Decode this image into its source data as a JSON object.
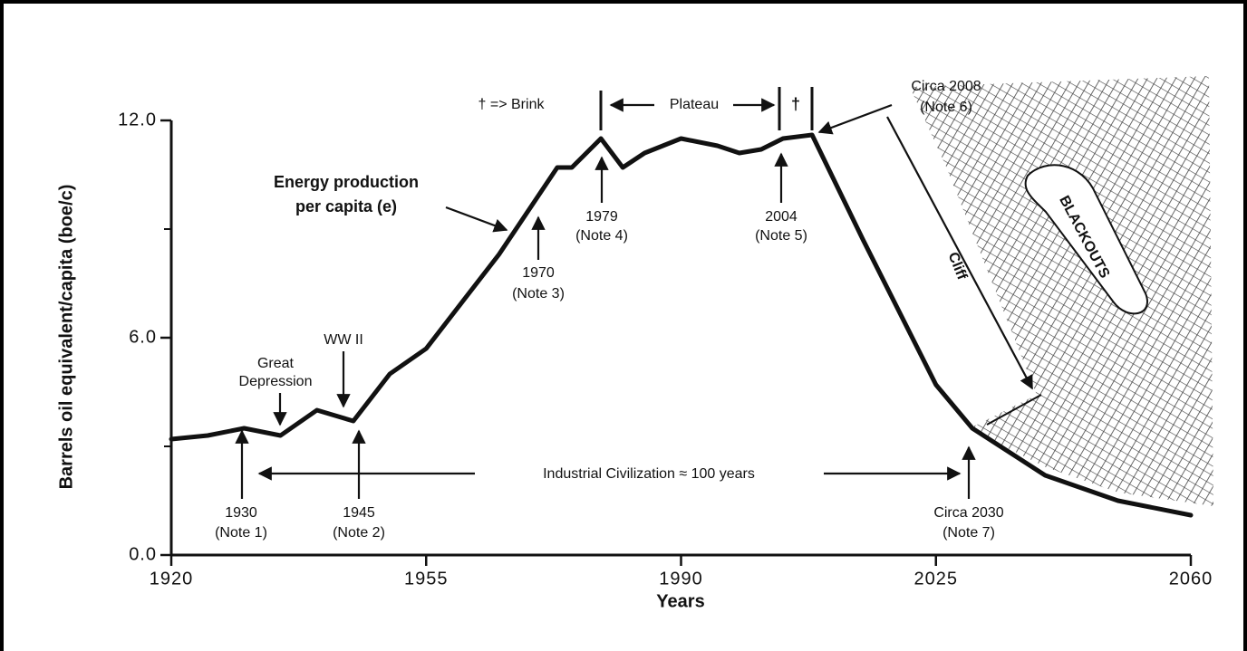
{
  "chart_data": {
    "type": "line",
    "x_label": "Years",
    "y_label": "Barrels oil equivalent/capita (boe/c)",
    "x": [
      1920,
      1925,
      1930,
      1935,
      1940,
      1945,
      1950,
      1955,
      1960,
      1965,
      1970,
      1973,
      1975,
      1979,
      1982,
      1985,
      1990,
      1995,
      1998,
      2001,
      2004,
      2008,
      2015,
      2020,
      2025,
      2030,
      2040,
      2050,
      2060
    ],
    "values": [
      3.2,
      3.3,
      3.5,
      3.3,
      4.0,
      3.7,
      5.0,
      5.7,
      7.0,
      8.3,
      9.8,
      10.7,
      10.7,
      11.5,
      10.7,
      11.1,
      11.5,
      11.3,
      11.1,
      11.2,
      11.5,
      11.6,
      8.7,
      6.7,
      4.7,
      3.5,
      2.2,
      1.5,
      1.1
    ],
    "color": "#111111",
    "xlim": [
      1920,
      2060
    ],
    "xticks": [
      1920,
      1955,
      1990,
      2025,
      2060
    ],
    "ylim": [
      0,
      12
    ],
    "yticks": [
      {
        "value": 0,
        "label": "0.0"
      },
      {
        "value": 6,
        "label": "6.0"
      },
      {
        "value": 12,
        "label": "12.0"
      }
    ],
    "y_minor_ticks": [
      3,
      9
    ],
    "annotations": [
      "† => Brink",
      "Plateau",
      "†",
      "Circa 2008",
      "(Note 6)",
      "Energy production",
      "per capita (e)",
      "1979",
      "(Note 4)",
      "2004",
      "(Note 5)",
      "1970",
      "(Note 3)",
      "Great",
      "Depression",
      "WW II",
      "1930",
      "(Note 1)",
      "1945",
      "(Note 2)",
      "Industrial Civilization ≈ 100 years",
      "Circa 2030",
      "(Note 7)",
      "Cliff",
      "BLACKOUTS"
    ]
  }
}
